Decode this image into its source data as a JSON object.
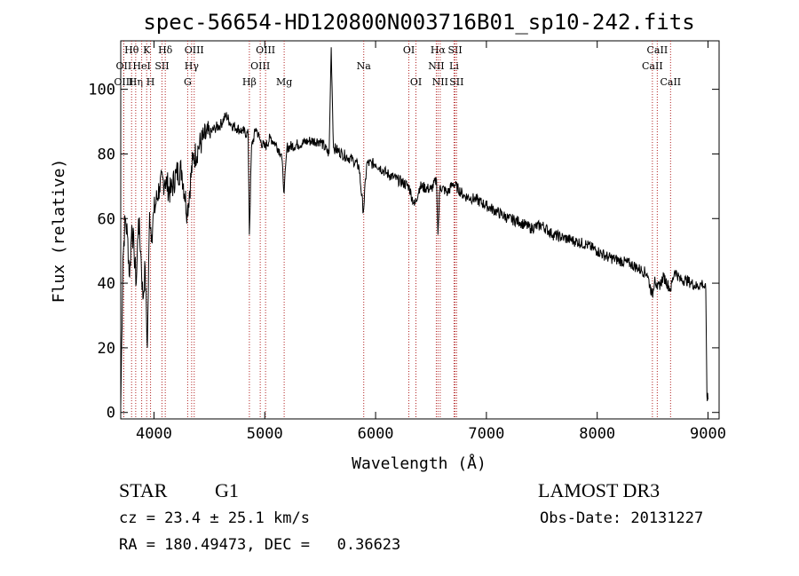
{
  "chart_data": {
    "type": "line",
    "title": "spec-56654-HD120800N003716B01_sp10-242.fits",
    "xlabel": "Wavelength (Å)",
    "ylabel": "Flux (relative)",
    "xlim": [
      3700,
      9100
    ],
    "ylim": [
      -2,
      115
    ],
    "xticks": [
      4000,
      5000,
      6000,
      7000,
      8000,
      9000
    ],
    "yticks": [
      0,
      20,
      40,
      60,
      80,
      100
    ],
    "series": [
      {
        "name": "flux",
        "x": [
          3700,
          3720,
          3740,
          3760,
          3780,
          3800,
          3820,
          3840,
          3860,
          3880,
          3900,
          3920,
          3940,
          3960,
          3980,
          4000,
          4050,
          4100,
          4150,
          4200,
          4250,
          4300,
          4350,
          4400,
          4450,
          4500,
          4550,
          4600,
          4650,
          4700,
          4750,
          4800,
          4850,
          4861,
          4880,
          4920,
          4960,
          5000,
          5050,
          5100,
          5150,
          5175,
          5200,
          5300,
          5400,
          5500,
          5580,
          5600,
          5620,
          5700,
          5800,
          5850,
          5890,
          5920,
          6000,
          6100,
          6200,
          6300,
          6350,
          6400,
          6500,
          6550,
          6563,
          6580,
          6650,
          6700,
          6800,
          6900,
          7000,
          7100,
          7200,
          7300,
          7400,
          7500,
          7600,
          7700,
          7800,
          7900,
          8000,
          8100,
          8200,
          8300,
          8400,
          8450,
          8498,
          8520,
          8542,
          8600,
          8662,
          8700,
          8750,
          8800,
          8850,
          8900,
          8950,
          8980,
          8990,
          9000
        ],
        "y": [
          2,
          48,
          60,
          55,
          42,
          58,
          50,
          40,
          60,
          50,
          35,
          45,
          20,
          62,
          55,
          62,
          70,
          72,
          68,
          74,
          75,
          62,
          78,
          82,
          85,
          86,
          88,
          89,
          92,
          89,
          88,
          87,
          86,
          55,
          82,
          88,
          84,
          82,
          85,
          83,
          80,
          68,
          82,
          83,
          84,
          84,
          80,
          113,
          82,
          80,
          78,
          76,
          62,
          77,
          77,
          74,
          72,
          70,
          64,
          70,
          69,
          72,
          55,
          70,
          68,
          71,
          67,
          66,
          64,
          62,
          60,
          59,
          57,
          58,
          55,
          54,
          53,
          52,
          50,
          48,
          47,
          46,
          44,
          43,
          36,
          42,
          38,
          42,
          38,
          44,
          41,
          41,
          40,
          39,
          40,
          38,
          5,
          4
        ]
      }
    ],
    "line_markers": [
      {
        "label": "Hθ",
        "x": 3798,
        "row": 0
      },
      {
        "label": "OII",
        "x": 3727,
        "row": 1
      },
      {
        "label": "OIII",
        "x": 3727,
        "row": 2
      },
      {
        "label": "Hη",
        "x": 3835,
        "row": 2
      },
      {
        "label": "HeI",
        "x": 3889,
        "row": 1
      },
      {
        "label": "K",
        "x": 3934,
        "row": 0
      },
      {
        "label": "H",
        "x": 3969,
        "row": 2
      },
      {
        "label": "SII",
        "x": 4072,
        "row": 1
      },
      {
        "label": "Hδ",
        "x": 4102,
        "row": 0
      },
      {
        "label": "G",
        "x": 4304,
        "row": 2
      },
      {
        "label": "Hγ",
        "x": 4340,
        "row": 1
      },
      {
        "label": "OIII",
        "x": 4363,
        "row": 0
      },
      {
        "label": "Hβ",
        "x": 4861,
        "row": 2
      },
      {
        "label": "OIII",
        "x": 4959,
        "row": 1
      },
      {
        "label": "OIII",
        "x": 5007,
        "row": 0
      },
      {
        "label": "Mg",
        "x": 5175,
        "row": 2
      },
      {
        "label": "Na",
        "x": 5893,
        "row": 1
      },
      {
        "label": "OI",
        "x": 6300,
        "row": 0
      },
      {
        "label": "OI",
        "x": 6364,
        "row": 2
      },
      {
        "label": "Hα",
        "x": 6563,
        "row": 0
      },
      {
        "label": "NII",
        "x": 6548,
        "row": 1
      },
      {
        "label": "NII",
        "x": 6583,
        "row": 2
      },
      {
        "label": "SII",
        "x": 6717,
        "row": 0
      },
      {
        "label": "Li",
        "x": 6708,
        "row": 1
      },
      {
        "label": "SII",
        "x": 6731,
        "row": 2
      },
      {
        "label": "CaII",
        "x": 8542,
        "row": 0
      },
      {
        "label": "CaII",
        "x": 8498,
        "row": 1
      },
      {
        "label": "CaII",
        "x": 8662,
        "row": 2
      }
    ]
  },
  "info": {
    "object_type": "STAR",
    "subclass": "G1",
    "survey": "LAMOST DR3",
    "cz": "cz = 23.4 ± 25.1 km/s",
    "obs_date": "Obs-Date: 20131227",
    "coords": "RA = 180.49473, DEC =   0.36623"
  },
  "colors": {
    "line": "#000000",
    "marker": "#b22222"
  }
}
